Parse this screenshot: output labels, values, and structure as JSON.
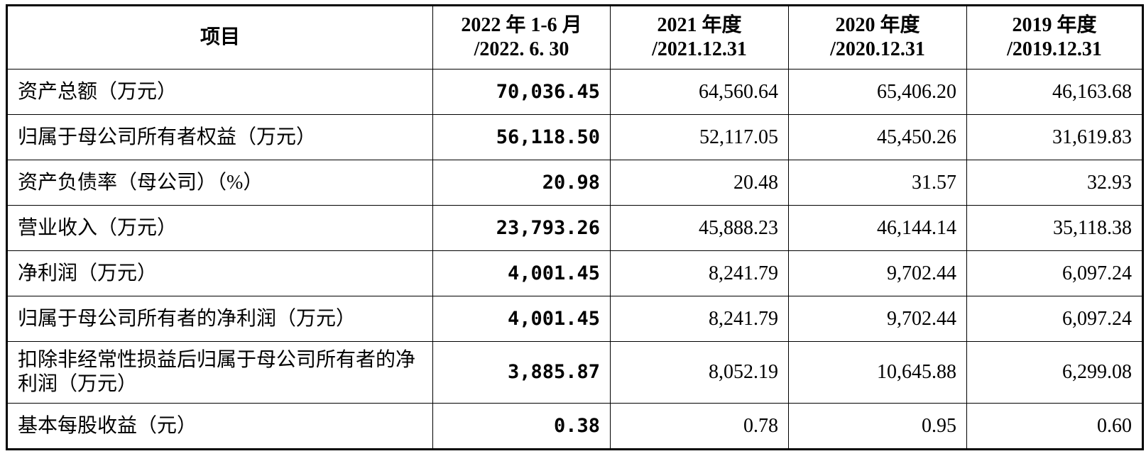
{
  "table": {
    "header": [
      [
        "项目"
      ],
      [
        "2022 年 1-6 月",
        "/2022. 6. 30"
      ],
      [
        "2021 年度",
        "/2021.12.31"
      ],
      [
        "2020 年度",
        "/2020.12.31"
      ],
      [
        "2019 年度",
        "/2019.12.31"
      ]
    ],
    "rows": [
      [
        "资产总额（万元）",
        "70,036.45",
        "64,560.64",
        "65,406.20",
        "46,163.68"
      ],
      [
        "归属于母公司所有者权益（万元）",
        "56,118.50",
        "52,117.05",
        "45,450.26",
        "31,619.83"
      ],
      [
        "资产负债率（母公司）（%）",
        "20.98",
        "20.48",
        "31.57",
        "32.93"
      ],
      [
        "营业收入（万元）",
        "23,793.26",
        "45,888.23",
        "46,144.14",
        "35,118.38"
      ],
      [
        "净利润（万元）",
        "4,001.45",
        "8,241.79",
        "9,702.44",
        "6,097.24"
      ],
      [
        "归属于母公司所有者的净利润（万元）",
        "4,001.45",
        "8,241.79",
        "9,702.44",
        "6,097.24"
      ],
      [
        "扣除非经常性损益后归属于母公司所有者的净利润（万元）",
        "3,885.87",
        "8,052.19",
        "10,645.88",
        "6,299.08"
      ],
      [
        "基本每股收益（元）",
        "0.38",
        "0.78",
        "0.95",
        "0.60"
      ]
    ]
  }
}
